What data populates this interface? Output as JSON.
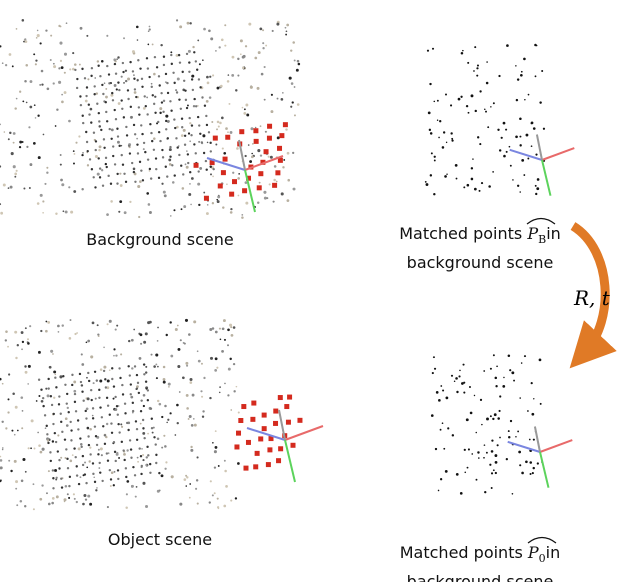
{
  "top_left": {
    "caption": "Background scene"
  },
  "top_right": {
    "caption": {
      "before": "Matched points",
      "symbol": "P",
      "subscript": "B",
      "after": "in",
      "line2": "background scene"
    }
  },
  "transform_label": "R, t",
  "bottom_left": {
    "caption": "Object scene"
  },
  "bottom_right": {
    "caption": {
      "before": "Matched points",
      "symbol": "P",
      "subscript": "0",
      "after": "in",
      "line2": "background scene"
    }
  }
}
